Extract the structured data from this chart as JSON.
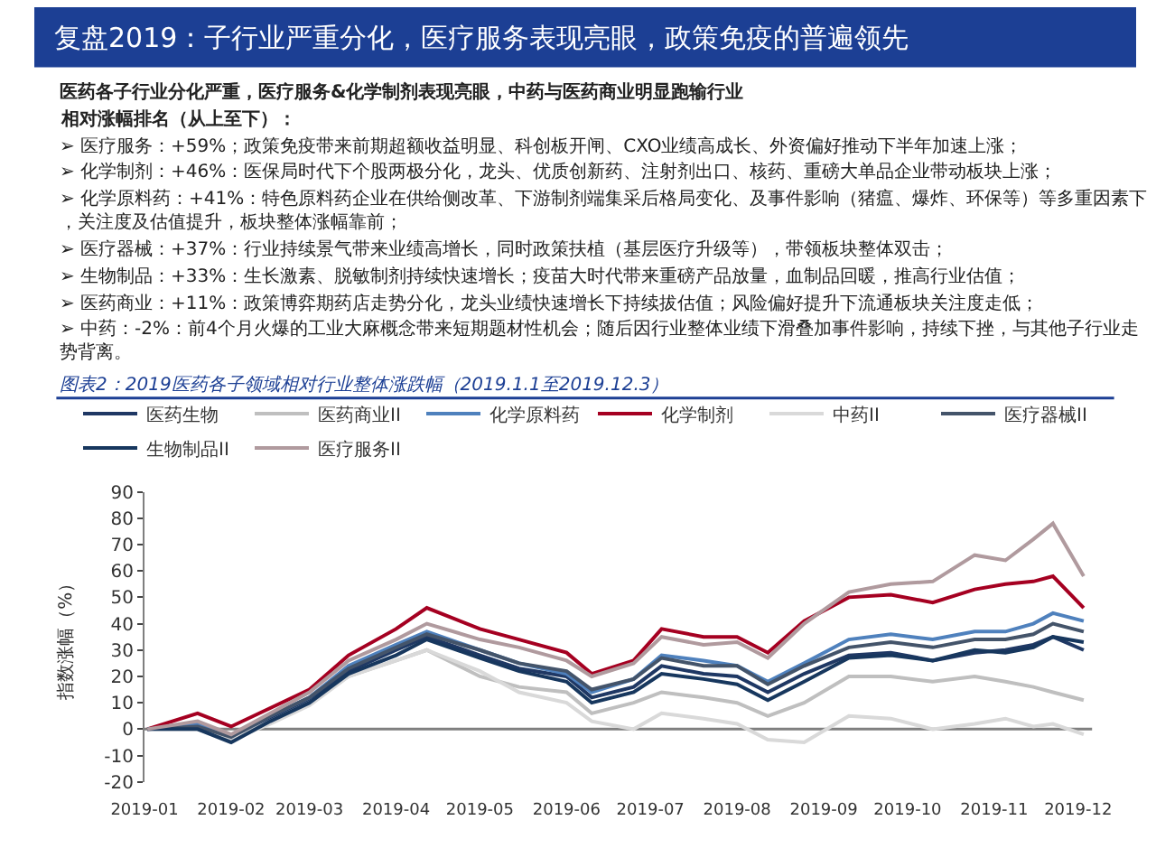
{
  "chart_data": {
    "type": "line",
    "title": "复盘2019：子行业严重分化，医疗服务表现亮眼，政策免疫的普遍领先",
    "subtitle": "图表2：2019医药各子领域相对行业整体涨跌幅（2019.1.1至2019.12.3）",
    "ylabel": "指数涨幅（%）",
    "annotations": [
      "医药各子行业分化严重，医疗服务&化学制剂表现亮眼，中药与医药商业明显跑输行业",
      "相对涨幅排名（从上至下）：",
      "➢ 医疗服务：+59%；政策免疫带来前期超额收益明显、科创板开闸、CXO业绩高成长、外资偏好推动下半年加速上涨；",
      "➢ 化学制剂：+46%：医保局时代下个股两极分化，龙头、优质创新药、注射剂出口、核药、重磅大单品企业带动板块上涨；",
      "➢ 化学原料药：+41%：特色原料药企业在供给侧改革、下游制剂端集采后格局变化、及事件影响（猪瘟、爆炸、环保等）等多重因素下，关注度及估值提升，板块整体涨幅靠前；",
      "➢ 医疗器械：+37%：行业持续景气带来业绩高增长，同时政策扶植（基层医疗升级等），带领板块整体双击；",
      "➢ 生物制品：+33%：生长激素、脱敏制剂持续快速增长；疫苗大时代带来重磅产品放量，血制品回暖，推高行业估值；",
      "➢ 医药商业：+11%：政策博弈期药店走势分化，龙头业绩快速增长下持续拔估值；风险偏好提升下流通板块关注度走低；",
      "➢ 中药：-2%：前4个月火爆的工业大麻概念带来短期题材性机会；随后因行业整体业绩下滑叠加事件影响，持续下挫，与其他子行业走势背离。"
    ],
    "x": [
      "2019-01-02",
      "2019-01-20",
      "2019-02-01",
      "2019-02-15",
      "2019-03-01",
      "2019-03-15",
      "2019-04-01",
      "2019-04-12",
      "2019-05-01",
      "2019-05-15",
      "2019-06-01",
      "2019-06-10",
      "2019-06-25",
      "2019-07-05",
      "2019-07-20",
      "2019-08-01",
      "2019-08-12",
      "2019-08-25",
      "2019-09-10",
      "2019-09-25",
      "2019-10-10",
      "2019-10-25",
      "2019-11-05",
      "2019-11-15",
      "2019-11-22",
      "2019-12-03"
    ],
    "series": [
      {
        "name": "医药生物",
        "color": "#1f3864",
        "values": [
          0,
          1,
          -4,
          4,
          11,
          22,
          30,
          35,
          28,
          23,
          20,
          12,
          16,
          24,
          21,
          20,
          14,
          21,
          28,
          29,
          26,
          29,
          30,
          32,
          35,
          30
        ]
      },
      {
        "name": "医药商业II",
        "color": "#bfbfbf",
        "values": [
          0,
          0,
          -4,
          3,
          10,
          20,
          26,
          30,
          20,
          16,
          14,
          6,
          10,
          14,
          12,
          10,
          5,
          10,
          20,
          20,
          18,
          20,
          18,
          16,
          14,
          11
        ]
      },
      {
        "name": "化学原料药",
        "color": "#4f81bd",
        "values": [
          0,
          2,
          -3,
          5,
          12,
          24,
          32,
          37,
          30,
          25,
          21,
          14,
          19,
          28,
          26,
          24,
          18,
          25,
          34,
          36,
          34,
          37,
          37,
          40,
          44,
          41
        ]
      },
      {
        "name": "化学制剂",
        "color": "#a50021",
        "values": [
          0,
          6,
          1,
          8,
          15,
          28,
          38,
          46,
          38,
          34,
          29,
          21,
          26,
          38,
          35,
          35,
          29,
          41,
          50,
          51,
          48,
          53,
          55,
          56,
          58,
          46
        ]
      },
      {
        "name": "中药II",
        "color": "#d9d9d9",
        "values": [
          0,
          0,
          -4,
          2,
          9,
          20,
          26,
          30,
          22,
          14,
          10,
          3,
          0,
          6,
          4,
          2,
          -4,
          -5,
          5,
          4,
          0,
          2,
          4,
          1,
          2,
          -2
        ]
      },
      {
        "name": "医疗器械II",
        "color": "#44546a",
        "values": [
          0,
          1,
          -3,
          5,
          12,
          23,
          31,
          36,
          30,
          25,
          22,
          15,
          19,
          27,
          24,
          24,
          17,
          24,
          31,
          33,
          31,
          34,
          34,
          36,
          40,
          37
        ]
      },
      {
        "name": "生物制品II",
        "color": "#17375e",
        "values": [
          0,
          0,
          -5,
          3,
          10,
          21,
          28,
          34,
          27,
          22,
          18,
          10,
          14,
          21,
          19,
          17,
          11,
          18,
          27,
          28,
          26,
          30,
          29,
          31,
          35,
          33
        ]
      },
      {
        "name": "医疗服务II",
        "color": "#b09a9e",
        "values": [
          0,
          3,
          -2,
          6,
          14,
          26,
          34,
          40,
          34,
          31,
          26,
          20,
          25,
          35,
          32,
          33,
          27,
          40,
          52,
          55,
          56,
          66,
          64,
          72,
          78,
          58
        ]
      }
    ],
    "xlim": [
      "2019-01-01",
      "2019-12-06"
    ],
    "xticks": [
      "2019-01",
      "2019-02",
      "2019-03",
      "2019-04",
      "2019-05",
      "2019-06",
      "2019-07",
      "2019-08",
      "2019-09",
      "2019-10",
      "2019-11",
      "2019-12"
    ],
    "ylim": [
      -20,
      90
    ],
    "yticks": [
      -20,
      -10,
      0,
      10,
      20,
      30,
      40,
      50,
      60,
      70,
      80,
      90
    ],
    "ref_lines": [
      {
        "axis": "y",
        "value": 0,
        "color": "#7f7f7f"
      }
    ],
    "legend": "top",
    "grid": false,
    "marker": "none",
    "line_style": "solid"
  }
}
